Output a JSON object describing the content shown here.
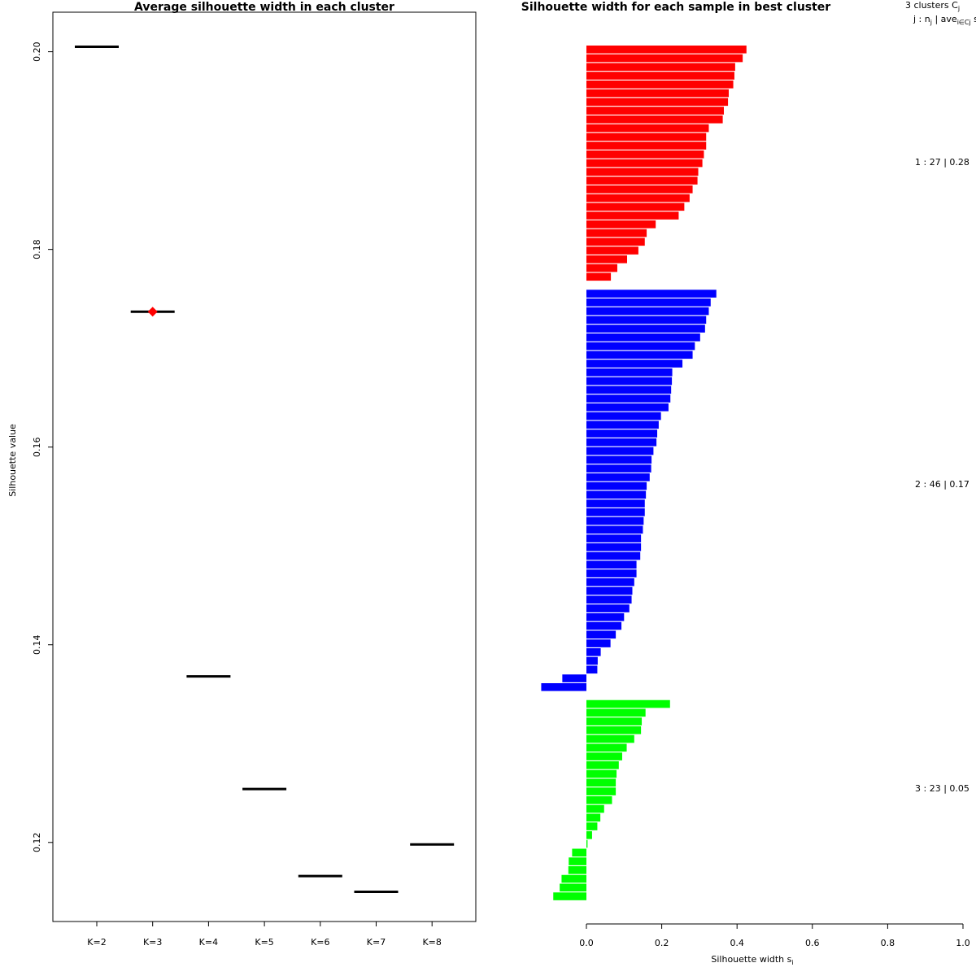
{
  "chart_data": [
    {
      "type": "scatter",
      "title": "Average silhouette width in each cluster",
      "ylabel": "Silhouette value",
      "xlabel": "",
      "categories": [
        "K=2",
        "K=3",
        "K=4",
        "K=5",
        "K=6",
        "K=7",
        "K=8"
      ],
      "values": [
        0.2005,
        0.1737,
        0.1368,
        0.1254,
        0.1166,
        0.115,
        0.1198
      ],
      "best_index": 1,
      "best_marker_color": "#ff0000",
      "ylim": [
        0.112,
        0.204
      ],
      "yticks": [
        0.12,
        0.14,
        0.16,
        0.18,
        0.2
      ],
      "ytick_labels": [
        "0.12",
        "0.14",
        "0.16",
        "0.18",
        "0.20"
      ],
      "grid": false
    },
    {
      "type": "bar",
      "orientation": "horizontal",
      "title": "Silhouette width for each sample in best cluster",
      "xlabel": "Silhouette width s",
      "xlabel_subscript": "i",
      "xlim": [
        -0.12,
        1.0
      ],
      "xticks": [
        0.0,
        0.2,
        0.4,
        0.6,
        0.8,
        1.0
      ],
      "xtick_labels": [
        "0.0",
        "0.2",
        "0.4",
        "0.6",
        "0.8",
        "1.0"
      ],
      "grid": false,
      "legend": {
        "header1": "3  clusters  C",
        "header1_sub": "j",
        "header2": "j :  n",
        "header2_sub": "j",
        "header2_rest": " | ave",
        "header2_sub2": "i∈Cj",
        "header2_end": "  s",
        "entries": [
          "1 :  27  |  0.28",
          "2 :  46  |  0.17",
          "3 :  23  |  0.05"
        ]
      },
      "clusters": [
        {
          "id": 1,
          "n": 27,
          "ave": 0.28,
          "color": "#ff0000",
          "values": [
            0.425,
            0.415,
            0.395,
            0.393,
            0.39,
            0.378,
            0.376,
            0.365,
            0.362,
            0.325,
            0.318,
            0.318,
            0.312,
            0.308,
            0.297,
            0.295,
            0.282,
            0.274,
            0.26,
            0.245,
            0.184,
            0.16,
            0.155,
            0.138,
            0.108,
            0.082,
            0.065
          ]
        },
        {
          "id": 2,
          "n": 46,
          "ave": 0.17,
          "color": "#0000ff",
          "values": [
            0.345,
            0.33,
            0.325,
            0.318,
            0.315,
            0.302,
            0.288,
            0.282,
            0.255,
            0.228,
            0.227,
            0.225,
            0.223,
            0.218,
            0.198,
            0.192,
            0.188,
            0.186,
            0.178,
            0.173,
            0.172,
            0.168,
            0.16,
            0.158,
            0.155,
            0.155,
            0.152,
            0.15,
            0.145,
            0.145,
            0.143,
            0.133,
            0.133,
            0.127,
            0.122,
            0.12,
            0.114,
            0.1,
            0.093,
            0.078,
            0.064,
            0.038,
            0.03,
            0.029,
            -0.064,
            -0.12
          ]
        },
        {
          "id": 3,
          "n": 23,
          "ave": 0.05,
          "color": "#00ff00",
          "values": [
            0.222,
            0.157,
            0.147,
            0.145,
            0.127,
            0.107,
            0.095,
            0.086,
            0.08,
            0.078,
            0.078,
            0.068,
            0.047,
            0.037,
            0.029,
            0.015,
            0.003,
            -0.038,
            -0.047,
            -0.048,
            -0.066,
            -0.071,
            -0.088
          ]
        }
      ]
    }
  ]
}
